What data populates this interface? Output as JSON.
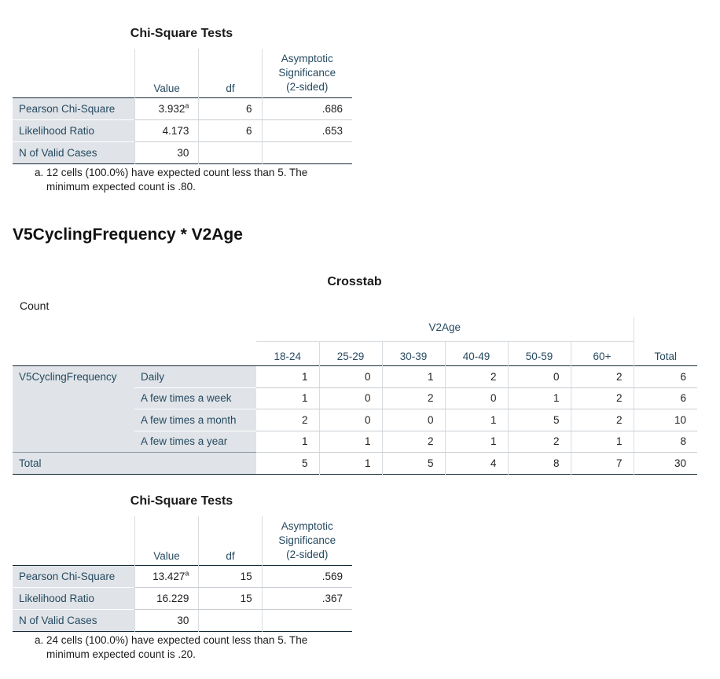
{
  "chi1": {
    "title": "Chi-Square Tests",
    "headers": {
      "value": "Value",
      "df": "df",
      "asym_line1": "Asymptotic",
      "asym_line2": "Significance",
      "asym_line3": "(2-sided)"
    },
    "rows": [
      {
        "label": "Pearson Chi-Square",
        "value": "3.932",
        "sup": "a",
        "df": "6",
        "sig": ".686"
      },
      {
        "label": "Likelihood Ratio",
        "value": "4.173",
        "df": "6",
        "sig": ".653"
      },
      {
        "label": "N of Valid Cases",
        "value": "30",
        "df": "",
        "sig": ""
      }
    ],
    "footnote_line1": "a. 12 cells (100.0%) have expected count less than 5. The",
    "footnote_line2": "minimum expected count is .80."
  },
  "section_title": "V5CyclingFrequency * V2Age",
  "crosstab": {
    "title": "Crosstab",
    "count_label": "Count",
    "col_var": "V2Age",
    "row_var": "V5CyclingFrequency",
    "columns": [
      "18-24",
      "25-29",
      "30-39",
      "40-49",
      "50-59",
      "60+"
    ],
    "total_label": "Total",
    "rows": [
      {
        "label": "Daily",
        "values": [
          "1",
          "0",
          "1",
          "2",
          "0",
          "2"
        ],
        "total": "6"
      },
      {
        "label": "A few times a week",
        "values": [
          "1",
          "0",
          "2",
          "0",
          "1",
          "2"
        ],
        "total": "6"
      },
      {
        "label": "A few times a month",
        "values": [
          "2",
          "0",
          "0",
          "1",
          "5",
          "2"
        ],
        "total": "10"
      },
      {
        "label": "A few times a year",
        "values": [
          "1",
          "1",
          "2",
          "1",
          "2",
          "1"
        ],
        "total": "8"
      }
    ],
    "totals_row": {
      "label": "Total",
      "values": [
        "5",
        "1",
        "5",
        "4",
        "8",
        "7"
      ],
      "total": "30"
    }
  },
  "chi2": {
    "title": "Chi-Square Tests",
    "headers": {
      "value": "Value",
      "df": "df",
      "asym_line1": "Asymptotic",
      "asym_line2": "Significance",
      "asym_line3": "(2-sided)"
    },
    "rows": [
      {
        "label": "Pearson Chi-Square",
        "value": "13.427",
        "sup": "a",
        "df": "15",
        "sig": ".569"
      },
      {
        "label": "Likelihood Ratio",
        "value": "16.229",
        "df": "15",
        "sig": ".367"
      },
      {
        "label": "N of Valid Cases",
        "value": "30",
        "df": "",
        "sig": ""
      }
    ],
    "footnote_line1": "a. 24 cells (100.0%) have expected count less than 5. The",
    "footnote_line2": "minimum expected count is .20."
  }
}
